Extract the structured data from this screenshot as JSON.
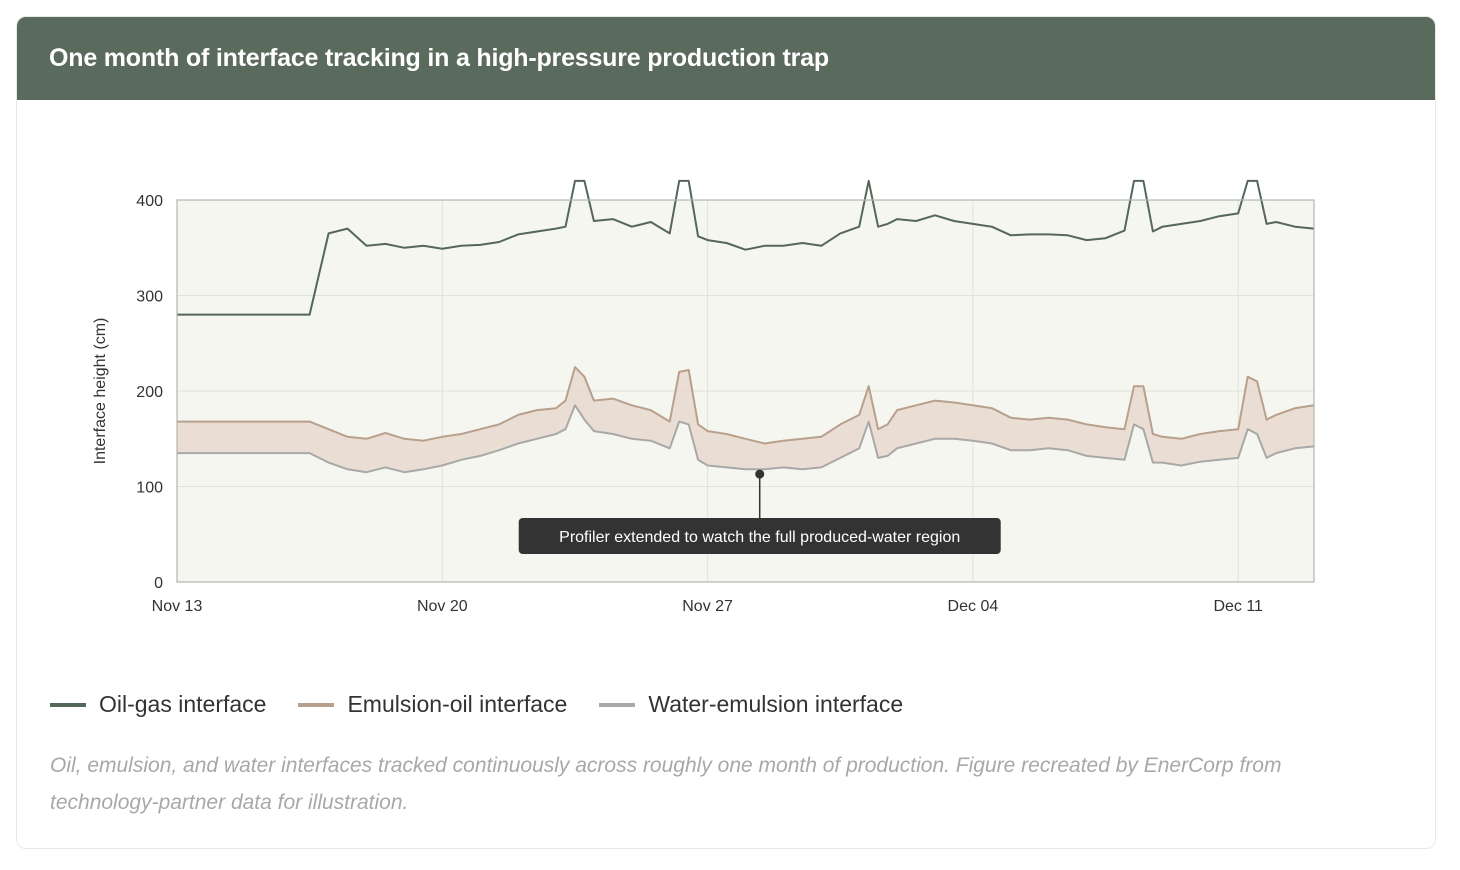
{
  "header": {
    "title": "One month of interface tracking in a high-pressure production trap"
  },
  "colors": {
    "header_bg": "#5a6a5c",
    "oil_gas": "#556758",
    "emulsion_oil": "#b8a08c",
    "water_emulsion": "#a8a8a8",
    "band_fill": "#e8d9cf",
    "plot_bg": "#f6f6f1",
    "annotation_bg": "#333333"
  },
  "chart_data": {
    "type": "line",
    "title": "One month of interface tracking in a high-pressure production trap",
    "xlabel": "",
    "ylabel": "Interface height (cm)",
    "ylim": [
      0,
      400
    ],
    "yticks": [
      0,
      100,
      200,
      300,
      400
    ],
    "xlim": [
      "2023-11-13",
      "2023-12-13"
    ],
    "xticks": [
      {
        "date": "2023-11-13",
        "label": "Nov 13"
      },
      {
        "date": "2023-11-20",
        "label": "Nov 20"
      },
      {
        "date": "2023-11-27",
        "label": "Nov 27"
      },
      {
        "date": "2023-12-04",
        "label": "Dec 04"
      },
      {
        "date": "2023-12-11",
        "label": "Dec 11"
      }
    ],
    "grid": true,
    "legend_position": "bottom-left",
    "band_between": [
      "Water-emulsion interface",
      "Emulsion-oil interface"
    ],
    "series": [
      {
        "name": "Oil-gas interface",
        "x": [
          "2023-11-13",
          "2023-11-14",
          "2023-11-15",
          "2023-11-16",
          "2023-11-16 12:00",
          "2023-11-17",
          "2023-11-17 12:00",
          "2023-11-18",
          "2023-11-18 12:00",
          "2023-11-19",
          "2023-11-19 12:00",
          "2023-11-20",
          "2023-11-20 12:00",
          "2023-11-21",
          "2023-11-21 12:00",
          "2023-11-22",
          "2023-11-22 12:00",
          "2023-11-23",
          "2023-11-23 06:00",
          "2023-11-23 12:00",
          "2023-11-23 18:00",
          "2023-11-24",
          "2023-11-24 12:00",
          "2023-11-25",
          "2023-11-25 12:00",
          "2023-11-26",
          "2023-11-26 06:00",
          "2023-11-26 12:00",
          "2023-11-26 18:00",
          "2023-11-27",
          "2023-11-27 12:00",
          "2023-11-28",
          "2023-11-28 12:00",
          "2023-11-29",
          "2023-11-29 12:00",
          "2023-11-30",
          "2023-11-30 12:00",
          "2023-12-01",
          "2023-12-01 06:00",
          "2023-12-01 12:00",
          "2023-12-01 18:00",
          "2023-12-02",
          "2023-12-02 12:00",
          "2023-12-03",
          "2023-12-03 12:00",
          "2023-12-04",
          "2023-12-04 12:00",
          "2023-12-05",
          "2023-12-05 12:00",
          "2023-12-06",
          "2023-12-06 12:00",
          "2023-12-07",
          "2023-12-07 12:00",
          "2023-12-08",
          "2023-12-08 06:00",
          "2023-12-08 12:00",
          "2023-12-08 18:00",
          "2023-12-09",
          "2023-12-09 12:00",
          "2023-12-10",
          "2023-12-10 12:00",
          "2023-12-11",
          "2023-12-11 06:00",
          "2023-12-11 12:00",
          "2023-12-11 18:00",
          "2023-12-12",
          "2023-12-12 12:00",
          "2023-12-13"
        ],
        "values": [
          280,
          280,
          280,
          280,
          280,
          365,
          370,
          352,
          354,
          350,
          352,
          349,
          352,
          353,
          356,
          364,
          367,
          370,
          372,
          420,
          420,
          378,
          380,
          372,
          377,
          365,
          420,
          420,
          362,
          358,
          355,
          348,
          352,
          352,
          355,
          352,
          365,
          372,
          420,
          372,
          375,
          380,
          378,
          384,
          378,
          375,
          372,
          363,
          364,
          364,
          363,
          358,
          360,
          368,
          420,
          420,
          367,
          372,
          375,
          378,
          383,
          386,
          420,
          420,
          375,
          377,
          372,
          370
        ]
      },
      {
        "name": "Emulsion-oil interface",
        "x": [
          "2023-11-13",
          "2023-11-14",
          "2023-11-15",
          "2023-11-16",
          "2023-11-16 12:00",
          "2023-11-17",
          "2023-11-17 12:00",
          "2023-11-18",
          "2023-11-18 12:00",
          "2023-11-19",
          "2023-11-19 12:00",
          "2023-11-20",
          "2023-11-20 12:00",
          "2023-11-21",
          "2023-11-21 12:00",
          "2023-11-22",
          "2023-11-22 12:00",
          "2023-11-23",
          "2023-11-23 06:00",
          "2023-11-23 12:00",
          "2023-11-23 18:00",
          "2023-11-24",
          "2023-11-24 12:00",
          "2023-11-25",
          "2023-11-25 12:00",
          "2023-11-26",
          "2023-11-26 06:00",
          "2023-11-26 12:00",
          "2023-11-26 18:00",
          "2023-11-27",
          "2023-11-27 12:00",
          "2023-11-28",
          "2023-11-28 12:00",
          "2023-11-29",
          "2023-11-29 12:00",
          "2023-11-30",
          "2023-11-30 12:00",
          "2023-12-01",
          "2023-12-01 06:00",
          "2023-12-01 12:00",
          "2023-12-01 18:00",
          "2023-12-02",
          "2023-12-02 12:00",
          "2023-12-03",
          "2023-12-03 12:00",
          "2023-12-04",
          "2023-12-04 12:00",
          "2023-12-05",
          "2023-12-05 12:00",
          "2023-12-06",
          "2023-12-06 12:00",
          "2023-12-07",
          "2023-12-07 12:00",
          "2023-12-08",
          "2023-12-08 06:00",
          "2023-12-08 12:00",
          "2023-12-08 18:00",
          "2023-12-09",
          "2023-12-09 12:00",
          "2023-12-10",
          "2023-12-10 12:00",
          "2023-12-11",
          "2023-12-11 06:00",
          "2023-12-11 12:00",
          "2023-12-11 18:00",
          "2023-12-12",
          "2023-12-12 12:00",
          "2023-12-13"
        ],
        "values": [
          168,
          168,
          168,
          168,
          168,
          160,
          152,
          150,
          156,
          150,
          148,
          152,
          155,
          160,
          165,
          175,
          180,
          182,
          190,
          225,
          215,
          190,
          192,
          185,
          180,
          168,
          220,
          222,
          165,
          158,
          155,
          150,
          145,
          148,
          150,
          152,
          165,
          175,
          205,
          160,
          165,
          180,
          185,
          190,
          188,
          185,
          182,
          172,
          170,
          172,
          170,
          165,
          162,
          160,
          205,
          205,
          155,
          152,
          150,
          155,
          158,
          160,
          215,
          210,
          170,
          175,
          182,
          185
        ]
      },
      {
        "name": "Water-emulsion interface",
        "x": [
          "2023-11-13",
          "2023-11-14",
          "2023-11-15",
          "2023-11-16",
          "2023-11-16 12:00",
          "2023-11-17",
          "2023-11-17 12:00",
          "2023-11-18",
          "2023-11-18 12:00",
          "2023-11-19",
          "2023-11-19 12:00",
          "2023-11-20",
          "2023-11-20 12:00",
          "2023-11-21",
          "2023-11-21 12:00",
          "2023-11-22",
          "2023-11-22 12:00",
          "2023-11-23",
          "2023-11-23 06:00",
          "2023-11-23 12:00",
          "2023-11-23 18:00",
          "2023-11-24",
          "2023-11-24 12:00",
          "2023-11-25",
          "2023-11-25 12:00",
          "2023-11-26",
          "2023-11-26 06:00",
          "2023-11-26 12:00",
          "2023-11-26 18:00",
          "2023-11-27",
          "2023-11-27 12:00",
          "2023-11-28",
          "2023-11-28 12:00",
          "2023-11-29",
          "2023-11-29 12:00",
          "2023-11-30",
          "2023-11-30 12:00",
          "2023-12-01",
          "2023-12-01 06:00",
          "2023-12-01 12:00",
          "2023-12-01 18:00",
          "2023-12-02",
          "2023-12-02 12:00",
          "2023-12-03",
          "2023-12-03 12:00",
          "2023-12-04",
          "2023-12-04 12:00",
          "2023-12-05",
          "2023-12-05 12:00",
          "2023-12-06",
          "2023-12-06 12:00",
          "2023-12-07",
          "2023-12-07 12:00",
          "2023-12-08",
          "2023-12-08 06:00",
          "2023-12-08 12:00",
          "2023-12-08 18:00",
          "2023-12-09",
          "2023-12-09 12:00",
          "2023-12-10",
          "2023-12-10 12:00",
          "2023-12-11",
          "2023-12-11 06:00",
          "2023-12-11 12:00",
          "2023-12-11 18:00",
          "2023-12-12",
          "2023-12-12 12:00",
          "2023-12-13"
        ],
        "values": [
          135,
          135,
          135,
          135,
          135,
          125,
          118,
          115,
          120,
          115,
          118,
          122,
          128,
          132,
          138,
          145,
          150,
          155,
          160,
          185,
          170,
          158,
          155,
          150,
          148,
          140,
          168,
          165,
          128,
          122,
          120,
          118,
          118,
          120,
          118,
          120,
          130,
          140,
          168,
          130,
          132,
          140,
          145,
          150,
          150,
          148,
          145,
          138,
          138,
          140,
          138,
          132,
          130,
          128,
          165,
          160,
          125,
          125,
          122,
          126,
          128,
          130,
          160,
          155,
          130,
          135,
          140,
          142
        ]
      }
    ],
    "annotation": {
      "text": "Profiler extended to watch the full produced-water region",
      "x": "2023-11-28 09:00",
      "y": 113
    }
  },
  "legend": {
    "items": [
      {
        "label": "Oil-gas interface",
        "color": "#556758"
      },
      {
        "label": "Emulsion-oil interface",
        "color": "#b8a08c"
      },
      {
        "label": "Water-emulsion interface",
        "color": "#a8a8a8"
      }
    ]
  },
  "caption": "Oil, emulsion, and water interfaces tracked continuously across roughly one month of production. Figure recreated by EnerCorp from technology-partner data for illustration."
}
